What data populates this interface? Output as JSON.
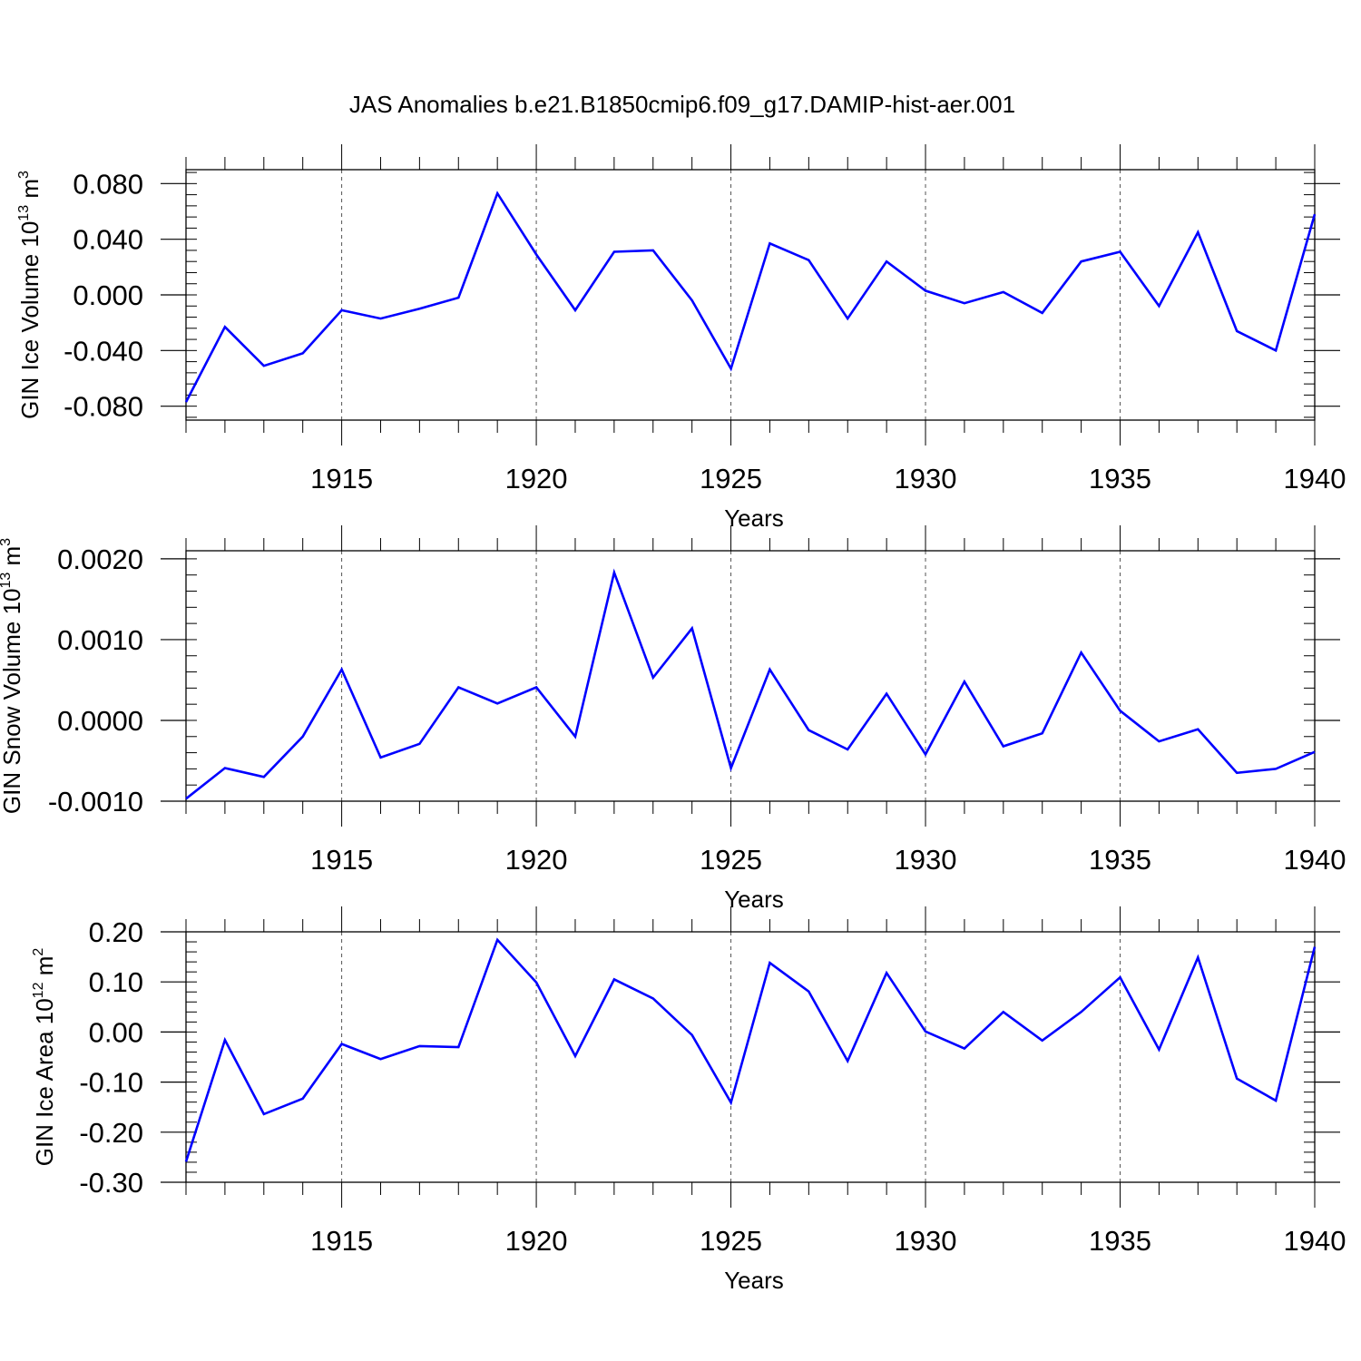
{
  "figure": {
    "title": "JAS Anomalies b.e21.B1850cmip6.f09_g17.DAMIP-hist-aer.001"
  },
  "chart_data": [
    {
      "type": "line",
      "panel": "top",
      "ylabel": {
        "text": "GIN Ice Volume 10",
        "sup": "13",
        "after": " m",
        "sup2": "3"
      },
      "xlabel": "Years",
      "xlim": [
        1911,
        1940
      ],
      "ylim": [
        -0.09,
        0.09
      ],
      "x_ticks": [
        1915,
        1920,
        1925,
        1930,
        1935,
        1940
      ],
      "y_ticks": [
        -0.08,
        -0.04,
        0.0,
        0.04,
        0.08
      ],
      "y_tick_labels": [
        "-0.080",
        "-0.040",
        "0.000",
        "0.040",
        "0.080"
      ],
      "grid": "vertical dashed at major x ticks",
      "color": "#0000ff",
      "x": [
        1911,
        1912,
        1913,
        1914,
        1915,
        1916,
        1917,
        1918,
        1919,
        1920,
        1921,
        1922,
        1923,
        1924,
        1925,
        1926,
        1927,
        1928,
        1929,
        1930,
        1931,
        1932,
        1933,
        1934,
        1935,
        1936,
        1937,
        1938,
        1939,
        1940
      ],
      "values": [
        -0.077,
        -0.023,
        -0.051,
        -0.042,
        -0.011,
        -0.017,
        -0.01,
        -0.002,
        0.073,
        0.029,
        -0.011,
        0.031,
        0.032,
        -0.004,
        -0.053,
        0.037,
        0.025,
        -0.017,
        0.024,
        0.003,
        -0.006,
        0.002,
        -0.013,
        0.024,
        0.031,
        -0.008,
        0.045,
        -0.026,
        -0.04,
        0.058
      ]
    },
    {
      "type": "line",
      "panel": "middle",
      "ylabel": {
        "text": "GIN Snow Volume 10",
        "sup": "13",
        "after": " m",
        "sup2": "3"
      },
      "xlabel": "Years",
      "xlim": [
        1911,
        1940
      ],
      "ylim": [
        -0.001,
        0.0021
      ],
      "x_ticks": [
        1915,
        1920,
        1925,
        1930,
        1935,
        1940
      ],
      "y_ticks": [
        -0.001,
        0.0,
        0.001,
        0.002
      ],
      "y_tick_labels": [
        "-0.0010",
        "0.0000",
        "0.0010",
        "0.0020"
      ],
      "grid": "vertical dashed at major x ticks",
      "color": "#0000ff",
      "x": [
        1911,
        1912,
        1913,
        1914,
        1915,
        1916,
        1917,
        1918,
        1919,
        1920,
        1921,
        1922,
        1923,
        1924,
        1925,
        1926,
        1927,
        1928,
        1929,
        1930,
        1931,
        1932,
        1933,
        1934,
        1935,
        1936,
        1937,
        1938,
        1939,
        1940
      ],
      "values": [
        -0.00097,
        -0.00059,
        -0.0007,
        -0.0002,
        0.00063,
        -0.00046,
        -0.00029,
        0.00041,
        0.00021,
        0.00041,
        -0.0002,
        0.00183,
        0.00053,
        0.00114,
        -0.00059,
        0.00063,
        -0.00012,
        -0.00036,
        0.00033,
        -0.00042,
        0.00048,
        -0.00032,
        -0.00016,
        0.00084,
        0.00012,
        -0.00026,
        -0.00011,
        -0.00065,
        -0.0006,
        -0.00039
      ]
    },
    {
      "type": "line",
      "panel": "bottom",
      "ylabel": {
        "text": "GIN Ice Area 10",
        "sup": "12",
        "after": " m",
        "sup2": "2"
      },
      "xlabel": "Years",
      "xlim": [
        1911,
        1940
      ],
      "ylim": [
        -0.3,
        0.2
      ],
      "x_ticks": [
        1915,
        1920,
        1925,
        1930,
        1935,
        1940
      ],
      "y_ticks": [
        -0.3,
        -0.2,
        -0.1,
        0.0,
        0.1,
        0.2
      ],
      "y_tick_labels": [
        "-0.30",
        "-0.20",
        "-0.10",
        "0.00",
        "0.10",
        "0.20"
      ],
      "grid": "vertical dashed at major x ticks",
      "color": "#0000ff",
      "x": [
        1911,
        1912,
        1913,
        1914,
        1915,
        1916,
        1917,
        1918,
        1919,
        1920,
        1921,
        1922,
        1923,
        1924,
        1925,
        1926,
        1927,
        1928,
        1929,
        1930,
        1931,
        1932,
        1933,
        1934,
        1935,
        1936,
        1937,
        1938,
        1939,
        1940
      ],
      "values": [
        -0.259,
        -0.016,
        -0.164,
        -0.133,
        -0.024,
        -0.054,
        -0.028,
        -0.03,
        0.184,
        0.099,
        -0.048,
        0.105,
        0.067,
        -0.006,
        -0.141,
        0.138,
        0.081,
        -0.058,
        0.118,
        0.001,
        -0.033,
        0.04,
        -0.017,
        0.04,
        0.109,
        -0.035,
        0.149,
        -0.093,
        -0.137,
        0.17
      ]
    }
  ]
}
